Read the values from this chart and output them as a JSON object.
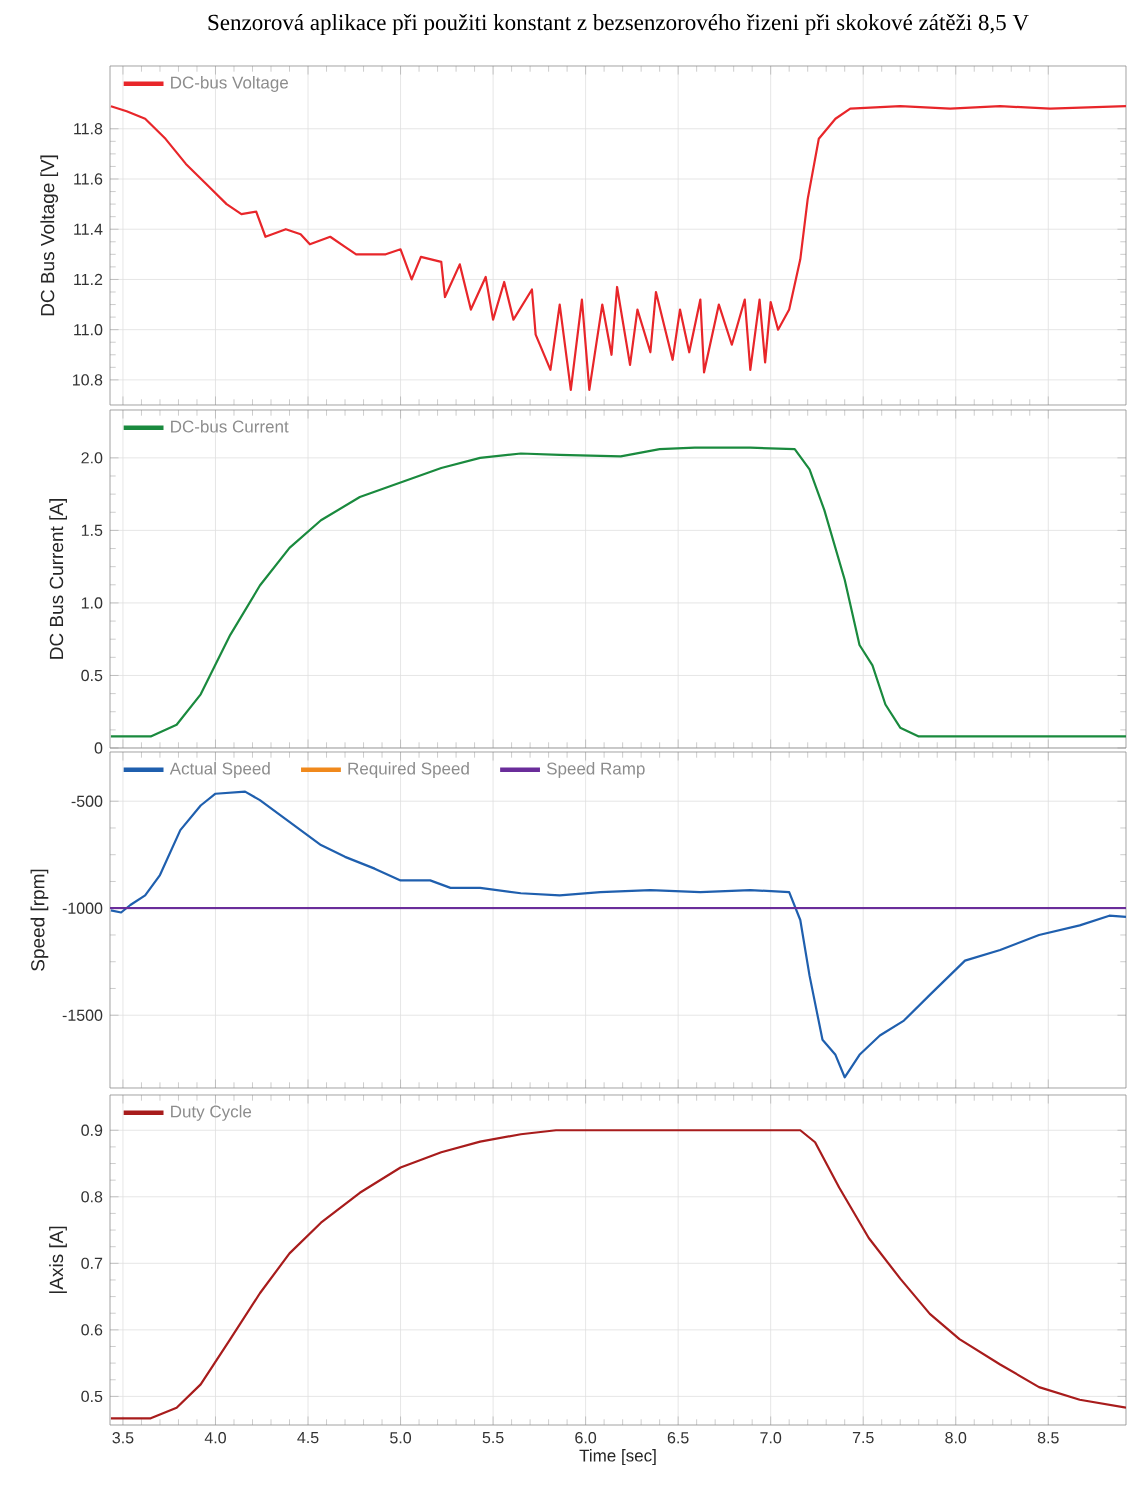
{
  "chart_data": [
    {
      "type": "line",
      "title": "Senzorová aplikace při použiti konstant z bezsenzorového řizeni při skokové zátěži 8,5 V",
      "ylabel": "DC Bus Voltage [V]",
      "xlim": [
        3.43,
        8.92
      ],
      "ylim": [
        10.7,
        12.05
      ],
      "xticks": [
        {
          "value": 3.5,
          "label": null
        },
        {
          "value": 4,
          "label": null
        },
        {
          "value": 4.5,
          "label": null
        },
        {
          "value": 5,
          "label": null
        },
        {
          "value": 5.5,
          "label": null
        },
        {
          "value": 6,
          "label": null
        },
        {
          "value": 6.5,
          "label": null
        },
        {
          "value": 7,
          "label": null
        },
        {
          "value": 7.5,
          "label": null
        },
        {
          "value": 8,
          "label": null
        },
        {
          "value": 8.5,
          "label": null
        }
      ],
      "yticks": [
        10.8,
        {
          "value": 11,
          "label": "11.0"
        },
        11.2,
        11.4,
        11.6,
        11.8
      ],
      "tick_labels": "y",
      "grid": true,
      "legend": "top left",
      "series": [
        {
          "name": "DC-bus Voltage",
          "color": "#e8262a",
          "x": [
            3.435,
            3.52,
            3.62,
            3.73,
            3.84,
            3.95,
            4.06,
            4.14,
            4.22,
            4.27,
            4.38,
            4.46,
            4.51,
            4.62,
            4.7,
            4.76,
            4.92,
            5.0,
            5.06,
            5.11,
            5.22,
            5.24,
            5.32,
            5.38,
            5.46,
            5.5,
            5.56,
            5.61,
            5.71,
            5.73,
            5.81,
            5.86,
            5.92,
            5.98,
            6.02,
            6.09,
            6.14,
            6.17,
            6.24,
            6.28,
            6.35,
            6.38,
            6.47,
            6.51,
            6.56,
            6.62,
            6.64,
            6.72,
            6.79,
            6.86,
            6.89,
            6.94,
            6.97,
            7.0,
            7.04,
            7.1,
            7.16,
            7.2,
            7.26,
            7.35,
            7.43,
            7.7,
            7.97,
            8.24,
            8.51,
            8.92
          ],
          "values": [
            11.89,
            11.87,
            11.84,
            11.76,
            11.66,
            11.58,
            11.5,
            11.46,
            11.47,
            11.37,
            11.4,
            11.38,
            11.34,
            11.37,
            11.33,
            11.3,
            11.3,
            11.32,
            11.2,
            11.29,
            11.27,
            11.13,
            11.26,
            11.08,
            11.21,
            11.04,
            11.19,
            11.04,
            11.16,
            10.98,
            10.84,
            11.1,
            10.76,
            11.12,
            10.76,
            11.1,
            10.9,
            11.17,
            10.86,
            11.08,
            10.91,
            11.15,
            10.88,
            11.08,
            10.91,
            11.12,
            10.83,
            11.1,
            10.94,
            11.12,
            10.84,
            11.12,
            10.87,
            11.11,
            11.0,
            11.08,
            11.28,
            11.52,
            11.76,
            11.84,
            11.88,
            11.89,
            11.88,
            11.89,
            11.88,
            11.89
          ]
        }
      ]
    },
    {
      "type": "line",
      "ylabel": "DC Bus Current [A]",
      "xlim": [
        3.43,
        8.92
      ],
      "ylim": [
        0,
        2.33
      ],
      "xticks": [
        {
          "value": 3.5,
          "label": null
        },
        {
          "value": 4,
          "label": null
        },
        {
          "value": 4.5,
          "label": null
        },
        {
          "value": 5,
          "label": null
        },
        {
          "value": 5.5,
          "label": null
        },
        {
          "value": 6,
          "label": null
        },
        {
          "value": 6.5,
          "label": null
        },
        {
          "value": 7,
          "label": null
        },
        {
          "value": 7.5,
          "label": null
        },
        {
          "value": 8,
          "label": null
        },
        {
          "value": 8.5,
          "label": null
        }
      ],
      "yticks": [
        0,
        0.5,
        {
          "value": 1,
          "label": "1.0"
        },
        1.5,
        {
          "value": 2,
          "label": "2.0"
        }
      ],
      "tick_labels": "y",
      "grid": true,
      "legend": "top left",
      "series": [
        {
          "name": "DC-bus Current",
          "color": "#1a8a3e",
          "x": [
            3.435,
            3.65,
            3.79,
            3.92,
            4.08,
            4.24,
            4.4,
            4.57,
            4.78,
            5.0,
            5.22,
            5.43,
            5.65,
            5.86,
            6.19,
            6.4,
            6.59,
            6.89,
            7.13,
            7.21,
            7.29,
            7.4,
            7.48,
            7.55,
            7.62,
            7.7,
            7.8,
            8.92
          ],
          "values": [
            0.08,
            0.08,
            0.16,
            0.37,
            0.78,
            1.12,
            1.38,
            1.57,
            1.73,
            1.83,
            1.93,
            2.0,
            2.03,
            2.02,
            2.01,
            2.06,
            2.07,
            2.07,
            2.06,
            1.92,
            1.64,
            1.16,
            0.71,
            0.57,
            0.3,
            0.14,
            0.08,
            0.08
          ]
        }
      ]
    },
    {
      "type": "line",
      "ylabel": "Speed [rpm]",
      "xlim": [
        3.43,
        8.92
      ],
      "ylim": [
        -1840,
        -270
      ],
      "xticks": [
        {
          "value": 3.5,
          "label": null
        },
        {
          "value": 4,
          "label": null
        },
        {
          "value": 4.5,
          "label": null
        },
        {
          "value": 5,
          "label": null
        },
        {
          "value": 5.5,
          "label": null
        },
        {
          "value": 6,
          "label": null
        },
        {
          "value": 6.5,
          "label": null
        },
        {
          "value": 7,
          "label": null
        },
        {
          "value": 7.5,
          "label": null
        },
        {
          "value": 8,
          "label": null
        },
        {
          "value": 8.5,
          "label": null
        }
      ],
      "yticks": [
        -1500,
        -1000,
        -500
      ],
      "tick_labels": "y",
      "grid": true,
      "legend": "top left",
      "series": [
        {
          "name": "Actual Speed",
          "color": "#1f5fae",
          "x": [
            3.435,
            3.49,
            3.54,
            3.62,
            3.7,
            3.81,
            3.92,
            4.0,
            4.16,
            4.24,
            4.35,
            4.46,
            4.57,
            4.7,
            4.86,
            5.0,
            5.16,
            5.27,
            5.43,
            5.65,
            5.86,
            6.08,
            6.35,
            6.62,
            6.89,
            7.1,
            7.16,
            7.21,
            7.28,
            7.35,
            7.4,
            7.48,
            7.59,
            7.72,
            7.86,
            8.05,
            8.24,
            8.45,
            8.67,
            8.83,
            8.92
          ],
          "values": [
            -1010,
            -1020,
            -985,
            -940,
            -845,
            -635,
            -520,
            -465,
            -455,
            -495,
            -565,
            -635,
            -705,
            -760,
            -815,
            -870,
            -870,
            -905,
            -905,
            -930,
            -940,
            -925,
            -915,
            -925,
            -915,
            -925,
            -1055,
            -1315,
            -1615,
            -1685,
            -1790,
            -1685,
            -1595,
            -1525,
            -1405,
            -1245,
            -1195,
            -1125,
            -1080,
            -1035,
            -1040
          ]
        },
        {
          "name": "Required Speed",
          "color": "#f0891c",
          "values": [
            null
          ]
        },
        {
          "name": "Speed Ramp",
          "color": "#6a2d9a",
          "x": [
            3.43,
            8.92
          ],
          "values": [
            -1000,
            -1000
          ]
        }
      ]
    },
    {
      "type": "line",
      "ylabel": "|Axis [A]",
      "xlabel": "Time [sec]",
      "xlim": [
        3.43,
        8.92
      ],
      "ylim": [
        0.457,
        0.953
      ],
      "xticks": [
        {
          "value": 3.5,
          "label": "3.5"
        },
        {
          "value": 4,
          "label": "4.0"
        },
        {
          "value": 4.5,
          "label": "4.5"
        },
        {
          "value": 5,
          "label": "5.0"
        },
        {
          "value": 5.5,
          "label": "5.5"
        },
        {
          "value": 6,
          "label": "6.0"
        },
        {
          "value": 6.5,
          "label": "6.5"
        },
        {
          "value": 7,
          "label": "7.0"
        },
        {
          "value": 7.5,
          "label": "7.5"
        },
        {
          "value": 8,
          "label": "8.0"
        },
        {
          "value": 8.5,
          "label": "8.5"
        }
      ],
      "yticks": [
        0.5,
        0.6,
        0.7,
        0.8,
        0.9
      ],
      "grid": true,
      "legend": "top left",
      "series": [
        {
          "name": "Duty Cycle",
          "color": "#a81c1c",
          "x": [
            3.435,
            3.65,
            3.79,
            3.92,
            4.08,
            4.24,
            4.4,
            4.57,
            4.78,
            5.0,
            5.22,
            5.43,
            5.65,
            5.84,
            7.16,
            7.24,
            7.37,
            7.53,
            7.7,
            7.86,
            8.02,
            8.24,
            8.45,
            8.67,
            8.92
          ],
          "values": [
            0.467,
            0.467,
            0.483,
            0.518,
            0.586,
            0.655,
            0.715,
            0.761,
            0.806,
            0.844,
            0.867,
            0.883,
            0.894,
            0.9,
            0.9,
            0.882,
            0.814,
            0.738,
            0.677,
            0.624,
            0.586,
            0.548,
            0.514,
            0.495,
            0.483
          ]
        }
      ]
    }
  ]
}
